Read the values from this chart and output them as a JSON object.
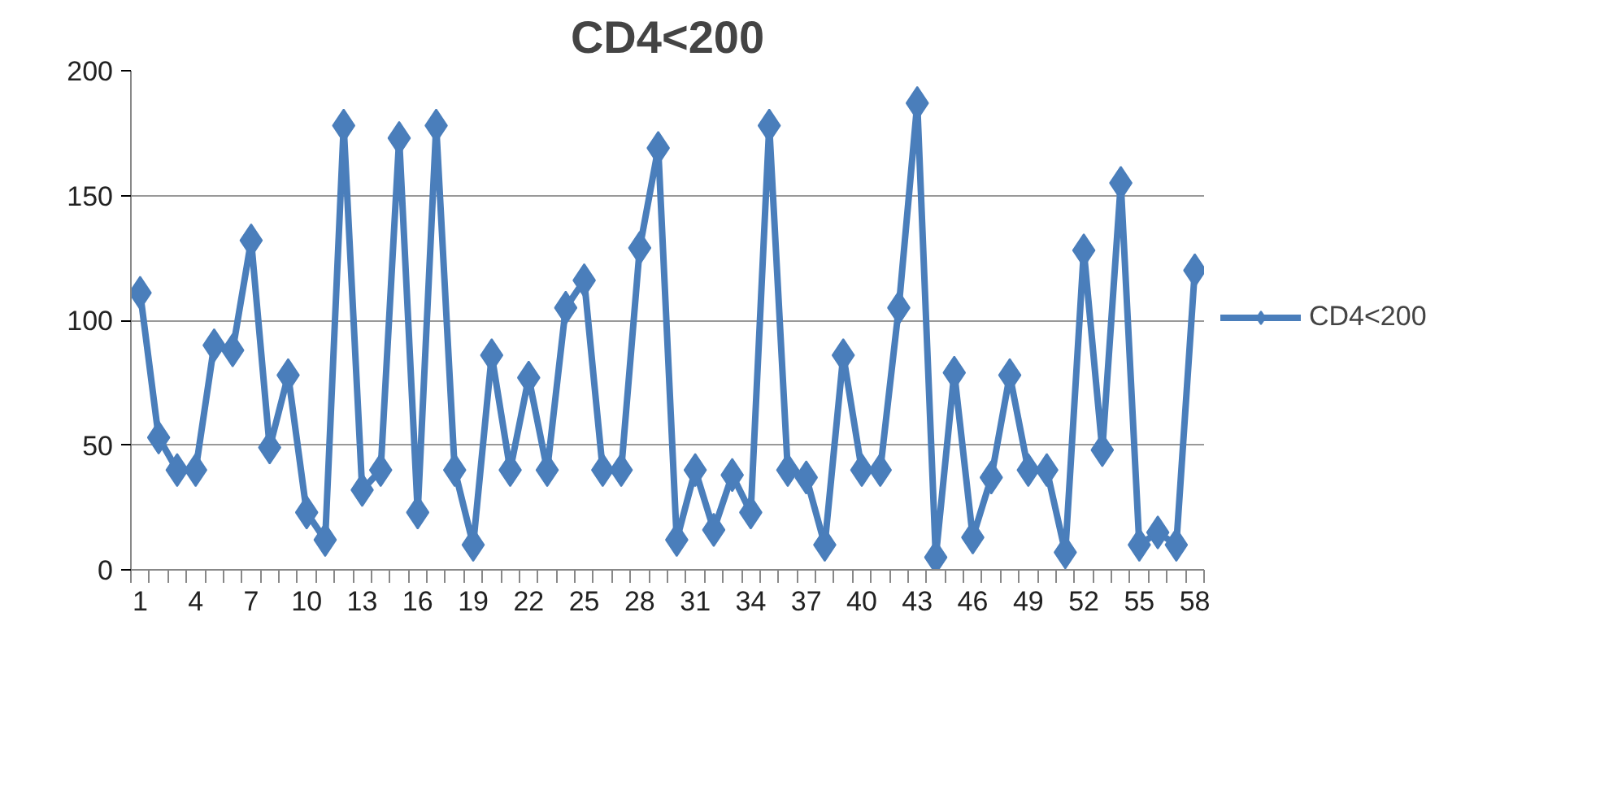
{
  "chart_data": {
    "type": "line",
    "title": "CD4<200",
    "categories": [
      "1",
      null,
      null,
      "4",
      null,
      null,
      "7",
      null,
      null,
      "10",
      null,
      null,
      "13",
      null,
      null,
      "16",
      null,
      null,
      "19",
      null,
      null,
      "22",
      null,
      null,
      "25",
      null,
      null,
      "28",
      null,
      null,
      "31",
      null,
      null,
      "34",
      null,
      null,
      "37",
      null,
      null,
      "40",
      null,
      null,
      "43",
      null,
      null,
      "46",
      null,
      null,
      "49",
      null,
      null,
      "52",
      null,
      null,
      "55",
      null,
      null,
      "58"
    ],
    "series": [
      {
        "name": "CD4<200",
        "color": "#4a7ebb",
        "values": [
          111,
          53,
          40,
          40,
          90,
          88,
          132,
          49,
          78,
          23,
          12,
          178,
          32,
          40,
          173,
          23,
          178,
          40,
          10,
          86,
          40,
          77,
          40,
          105,
          116,
          40,
          40,
          129,
          169,
          12,
          40,
          16,
          38,
          23,
          178,
          40,
          37,
          10,
          86,
          40,
          40,
          105,
          187,
          5,
          79,
          13,
          37,
          78,
          40,
          40,
          7,
          128,
          48,
          155,
          10,
          15,
          10,
          120
        ]
      }
    ],
    "ylim": [
      0,
      200
    ],
    "yticks": [
      0,
      50,
      100,
      150,
      200
    ],
    "grid": "y",
    "legend": "right",
    "marker": "diamond",
    "line_style": "solid"
  }
}
